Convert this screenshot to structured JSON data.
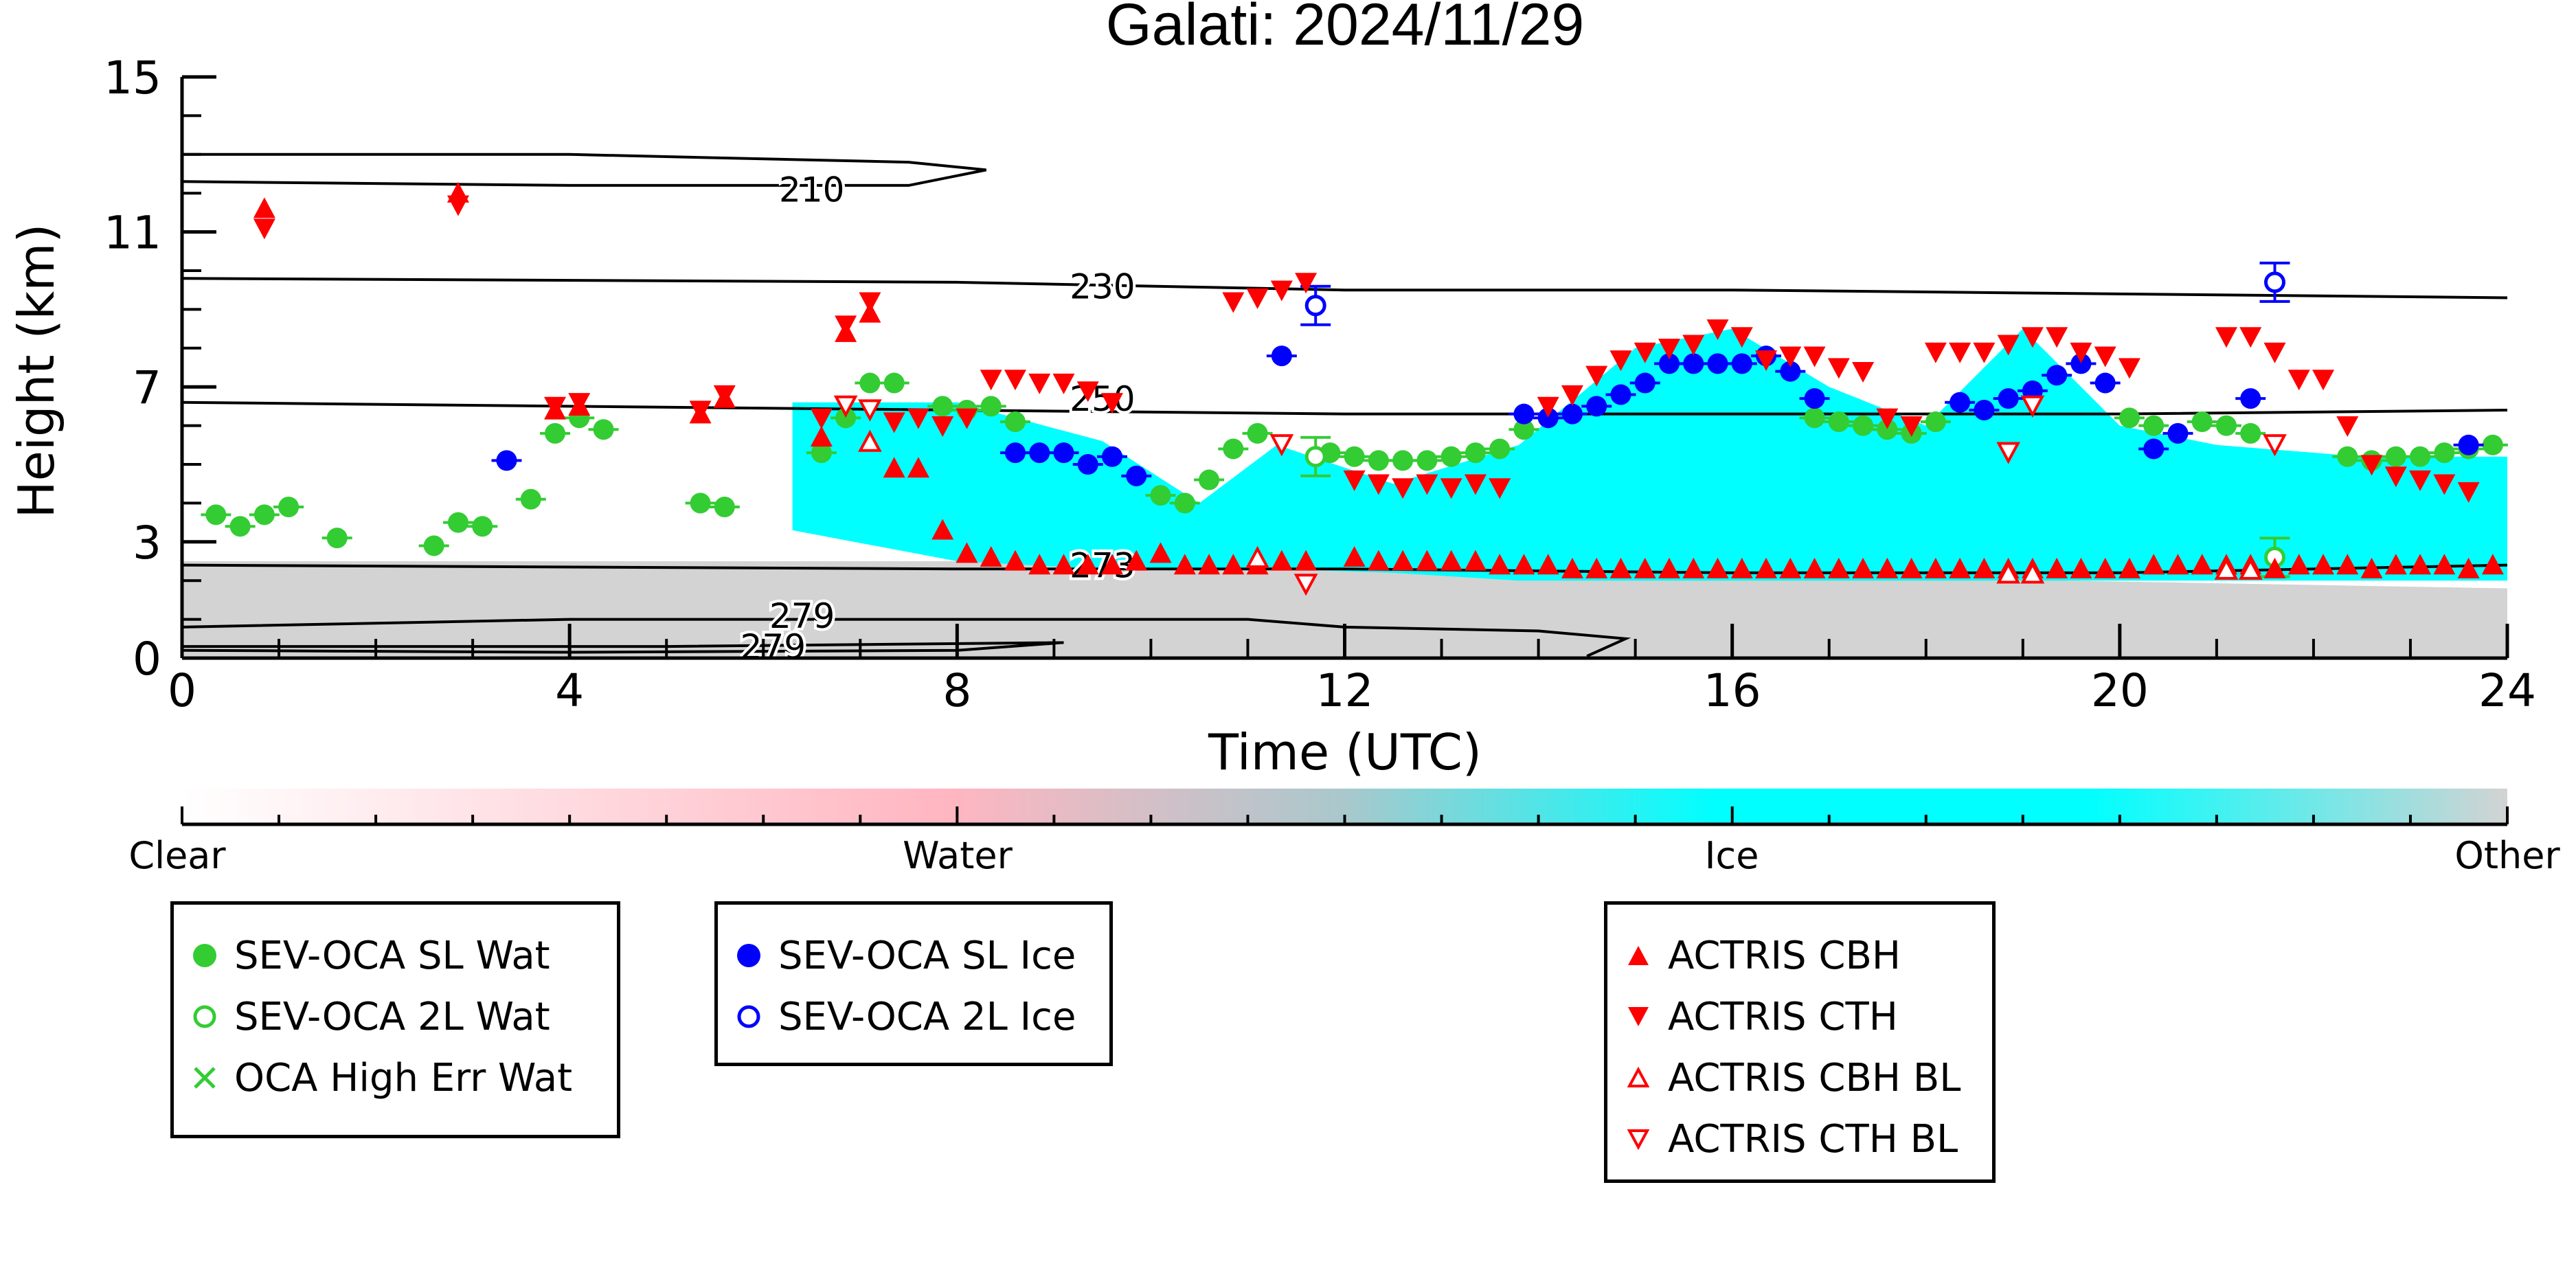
{
  "chart_data": {
    "type": "scatter",
    "title": "Galati: 2024/11/29",
    "xlabel": "Time (UTC)",
    "ylabel": "Height (km)",
    "xlim": [
      0,
      24
    ],
    "ylim": [
      0,
      15
    ],
    "x_ticks": [
      "0",
      "4",
      "8",
      "12",
      "16",
      "20",
      "24"
    ],
    "y_ticks": [
      "0",
      "3",
      "7",
      "11",
      "15"
    ],
    "background_mask": [
      {
        "class": "Ice",
        "color": "#00ffff",
        "x": 6.3,
        "bottom": 3.3,
        "top": 6.6
      },
      {
        "class": "Ice",
        "color": "#00ffff",
        "x": 8.0,
        "bottom": 2.5,
        "top": 6.6
      },
      {
        "class": "Ice",
        "color": "#00ffff",
        "x": 9.5,
        "bottom": 2.3,
        "top": 5.6
      },
      {
        "class": "Ice",
        "color": "#00ffff",
        "x": 10.5,
        "bottom": 2.3,
        "top": 4.0
      },
      {
        "class": "Ice",
        "color": "#00ffff",
        "x": 11.3,
        "bottom": 2.3,
        "top": 5.5
      },
      {
        "class": "Ice",
        "color": "#00ffff",
        "x": 12.5,
        "bottom": 2.2,
        "top": 4.5
      },
      {
        "class": "Ice",
        "color": "#00ffff",
        "x": 13.8,
        "bottom": 2.0,
        "top": 5.5
      },
      {
        "class": "Ice",
        "color": "#00ffff",
        "x": 15.0,
        "bottom": 2.0,
        "top": 8.0
      },
      {
        "class": "Ice",
        "color": "#00ffff",
        "x": 16.0,
        "bottom": 2.0,
        "top": 8.5
      },
      {
        "class": "Ice",
        "color": "#00ffff",
        "x": 17.0,
        "bottom": 2.0,
        "top": 7.0
      },
      {
        "class": "Ice",
        "color": "#00ffff",
        "x": 18.0,
        "bottom": 2.0,
        "top": 6.0
      },
      {
        "class": "Ice",
        "color": "#00ffff",
        "x": 19.0,
        "bottom": 2.0,
        "top": 8.5
      },
      {
        "class": "Ice",
        "color": "#00ffff",
        "x": 20.0,
        "bottom": 2.0,
        "top": 6.0
      },
      {
        "class": "Ice",
        "color": "#00ffff",
        "x": 21.0,
        "bottom": 2.0,
        "top": 5.5
      },
      {
        "class": "Ice",
        "color": "#00ffff",
        "x": 22.5,
        "bottom": 2.0,
        "top": 5.2
      },
      {
        "class": "Ice",
        "color": "#00ffff",
        "x": 24.0,
        "bottom": 2.0,
        "top": 5.2
      },
      {
        "class": "Other",
        "color": "#d3d3d3",
        "x": 0.0,
        "bottom": 0.0,
        "top": 2.5
      },
      {
        "class": "Other",
        "color": "#d3d3d3",
        "x": 3.9,
        "bottom": 0.0,
        "top": 2.5
      },
      {
        "class": "Other",
        "color": "#d3d3d3",
        "x": 5.8,
        "bottom": 0.0,
        "top": 2.5
      },
      {
        "class": "Other",
        "color": "#d3d3d3",
        "x": 8.1,
        "bottom": 0.0,
        "top": 2.5
      },
      {
        "class": "Other",
        "color": "#d3d3d3",
        "x": 24.0,
        "bottom": 0.0,
        "top": 1.8
      }
    ],
    "temperature_contours": [
      {
        "label": "210",
        "label_x": 6.5,
        "label_y": 12.1,
        "points": [
          [
            0,
            13.0
          ],
          [
            4,
            13.0
          ],
          [
            7.5,
            12.8
          ],
          [
            8.3,
            12.6
          ],
          [
            7.5,
            12.2
          ],
          [
            4,
            12.2
          ],
          [
            0,
            12.3
          ]
        ]
      },
      {
        "label": "230",
        "label_x": 9.5,
        "label_y": 9.6,
        "points": [
          [
            0,
            9.8
          ],
          [
            8,
            9.7
          ],
          [
            12,
            9.5
          ],
          [
            16,
            9.5
          ],
          [
            20,
            9.4
          ],
          [
            24,
            9.3
          ]
        ]
      },
      {
        "label": "250",
        "label_x": 9.5,
        "label_y": 6.7,
        "points": [
          [
            0,
            6.6
          ],
          [
            8,
            6.4
          ],
          [
            12,
            6.3
          ],
          [
            16,
            6.3
          ],
          [
            20,
            6.3
          ],
          [
            24,
            6.4
          ]
        ]
      },
      {
        "label": "273",
        "label_x": 9.5,
        "label_y": 2.4,
        "points": [
          [
            0,
            2.4
          ],
          [
            8,
            2.3
          ],
          [
            12,
            2.3
          ],
          [
            16,
            2.2
          ],
          [
            20,
            2.2
          ],
          [
            24,
            2.4
          ]
        ]
      },
      {
        "label": "279",
        "label_x": 6.4,
        "label_y": 1.1,
        "points": [
          [
            0,
            0.8
          ],
          [
            4,
            1.0
          ],
          [
            8,
            1.0
          ],
          [
            11,
            1.0
          ],
          [
            12,
            0.8
          ],
          [
            14,
            0.7
          ],
          [
            14.9,
            0.5
          ],
          [
            14.5,
            0.05
          ]
        ]
      },
      {
        "label": "279",
        "label_x": 6.1,
        "label_y": 0.3,
        "points": [
          [
            0,
            0.3
          ],
          [
            5,
            0.3
          ],
          [
            9.1,
            0.4
          ],
          [
            8,
            0.2
          ],
          [
            4,
            0.15
          ],
          [
            0,
            0.2
          ]
        ]
      }
    ],
    "colorbar": {
      "labels": [
        "Clear",
        "Water",
        "Ice",
        "Other"
      ],
      "colors": [
        "#ffffff",
        "#ffb6c1",
        "#00ffff",
        "#d3d3d3"
      ]
    },
    "series": [
      {
        "name": "SEV-OCA SL Wat",
        "marker": "filled-circle",
        "color": "#33cc33",
        "x": [
          0.35,
          0.6,
          0.85,
          1.1,
          1.6,
          2.6,
          2.85,
          3.1,
          3.6,
          3.85,
          4.1,
          4.35,
          5.35,
          5.6,
          6.6,
          6.85,
          7.1,
          7.35,
          7.85,
          8.1,
          8.35,
          8.6,
          10.1,
          10.35,
          10.6,
          10.85,
          11.1,
          11.85,
          12.1,
          12.35,
          12.6,
          12.85,
          13.1,
          13.35,
          13.6,
          13.85,
          16.85,
          17.1,
          17.35,
          17.6,
          17.85,
          18.1,
          20.1,
          20.35,
          20.85,
          21.1,
          21.35,
          22.35,
          22.6,
          22.85,
          23.1,
          23.35,
          23.6,
          23.85
        ],
        "y": [
          3.7,
          3.4,
          3.7,
          3.9,
          3.1,
          2.9,
          3.5,
          3.4,
          4.1,
          5.8,
          6.2,
          5.9,
          4.0,
          3.9,
          5.3,
          6.2,
          7.1,
          7.1,
          6.5,
          6.4,
          6.5,
          6.1,
          4.2,
          4.0,
          4.6,
          5.4,
          5.8,
          5.3,
          5.2,
          5.1,
          5.1,
          5.1,
          5.2,
          5.3,
          5.4,
          5.9,
          6.2,
          6.1,
          6.0,
          5.9,
          5.8,
          6.1,
          6.2,
          6.0,
          6.1,
          6.0,
          5.8,
          5.2,
          5.1,
          5.2,
          5.2,
          5.3,
          5.4,
          5.5
        ]
      },
      {
        "name": "SEV-OCA 2L Wat",
        "marker": "open-circle",
        "color": "#33cc33",
        "x": [
          11.7,
          21.6
        ],
        "y": [
          5.2,
          2.6
        ]
      },
      {
        "name": "OCA High Err Wat",
        "marker": "x",
        "color": "#33cc33",
        "x": [],
        "y": []
      },
      {
        "name": "SEV-OCA SL Ice",
        "marker": "filled-circle",
        "color": "#0000ff",
        "x": [
          3.35,
          8.6,
          8.85,
          9.1,
          9.35,
          9.6,
          9.85,
          11.35,
          13.85,
          14.1,
          14.35,
          14.6,
          14.85,
          15.1,
          15.35,
          15.6,
          15.85,
          16.1,
          16.35,
          16.6,
          16.85,
          18.35,
          18.6,
          18.85,
          19.1,
          19.35,
          19.6,
          19.85,
          20.35,
          20.6,
          21.35,
          23.6
        ],
        "y": [
          5.1,
          5.3,
          5.3,
          5.3,
          5.0,
          5.2,
          4.7,
          7.8,
          6.3,
          6.2,
          6.3,
          6.5,
          6.8,
          7.1,
          7.6,
          7.6,
          7.6,
          7.6,
          7.8,
          7.4,
          6.7,
          6.6,
          6.4,
          6.7,
          6.9,
          7.3,
          7.6,
          7.1,
          5.4,
          5.8,
          6.7,
          5.5
        ]
      },
      {
        "name": "SEV-OCA 2L Ice",
        "marker": "open-circle",
        "color": "#0000ff",
        "x": [
          11.7,
          21.6
        ],
        "y": [
          9.1,
          9.7
        ]
      },
      {
        "name": "ACTRIS CBH",
        "marker": "filled-triangle-up",
        "color": "#ff0000",
        "x": [
          0.85,
          2.85,
          3.85,
          4.1,
          5.35,
          5.6,
          6.6,
          6.85,
          7.1,
          7.35,
          7.6,
          7.85,
          8.1,
          8.35,
          8.6,
          8.85,
          9.1,
          9.35,
          9.6,
          9.85,
          10.1,
          10.35,
          10.6,
          10.85,
          11.1,
          11.35,
          11.6,
          12.1,
          12.35,
          12.6,
          12.85,
          13.1,
          13.35,
          13.6,
          13.85,
          14.1,
          14.35,
          14.6,
          14.85,
          15.1,
          15.35,
          15.6,
          15.85,
          16.1,
          16.35,
          16.6,
          16.85,
          17.1,
          17.35,
          17.6,
          17.85,
          18.1,
          18.35,
          18.6,
          18.85,
          19.1,
          19.35,
          19.6,
          19.85,
          20.1,
          20.35,
          20.6,
          20.85,
          21.1,
          21.35,
          21.6,
          21.85,
          22.1,
          22.35,
          22.6,
          22.85,
          23.1,
          23.35,
          23.6,
          23.85
        ],
        "y": [
          11.5,
          11.9,
          6.3,
          6.4,
          6.2,
          6.6,
          5.6,
          8.3,
          8.8,
          4.8,
          4.8,
          3.2,
          2.6,
          2.5,
          2.4,
          2.3,
          2.3,
          2.3,
          2.3,
          2.4,
          2.6,
          2.3,
          2.3,
          2.3,
          2.3,
          2.4,
          2.4,
          2.5,
          2.4,
          2.4,
          2.4,
          2.4,
          2.4,
          2.3,
          2.3,
          2.3,
          2.2,
          2.2,
          2.2,
          2.2,
          2.2,
          2.2,
          2.2,
          2.2,
          2.2,
          2.2,
          2.2,
          2.2,
          2.2,
          2.2,
          2.2,
          2.2,
          2.2,
          2.2,
          2.2,
          2.2,
          2.2,
          2.2,
          2.2,
          2.2,
          2.3,
          2.3,
          2.3,
          2.3,
          2.3,
          2.2,
          2.3,
          2.3,
          2.3,
          2.2,
          2.3,
          2.3,
          2.3,
          2.2,
          2.3
        ]
      },
      {
        "name": "ACTRIS CTH",
        "marker": "filled-triangle-down",
        "color": "#ff0000",
        "x": [
          0.85,
          2.85,
          3.85,
          4.1,
          5.35,
          5.6,
          6.6,
          6.85,
          7.1,
          7.35,
          7.6,
          7.85,
          8.1,
          8.35,
          8.6,
          8.85,
          9.1,
          9.35,
          9.6,
          10.85,
          11.1,
          11.35,
          11.6,
          12.1,
          12.35,
          12.6,
          12.85,
          13.1,
          13.35,
          13.6,
          14.1,
          14.35,
          14.6,
          14.85,
          15.1,
          15.35,
          15.6,
          15.85,
          16.1,
          16.35,
          16.6,
          16.85,
          17.1,
          17.35,
          17.6,
          17.85,
          18.1,
          18.35,
          18.6,
          18.85,
          19.1,
          19.35,
          19.6,
          19.85,
          20.1,
          21.1,
          21.35,
          21.6,
          21.85,
          22.1,
          22.35,
          22.6,
          22.85,
          23.1,
          23.35,
          23.6
        ],
        "y": [
          11.2,
          11.8,
          6.6,
          6.7,
          6.5,
          6.9,
          6.3,
          8.7,
          9.3,
          6.2,
          6.3,
          6.1,
          6.3,
          7.3,
          7.3,
          7.2,
          7.2,
          7.0,
          6.7,
          9.3,
          9.4,
          9.6,
          9.8,
          4.7,
          4.6,
          4.5,
          4.6,
          4.5,
          4.6,
          4.5,
          6.6,
          6.9,
          7.4,
          7.8,
          8.0,
          8.1,
          8.2,
          8.6,
          8.4,
          7.8,
          7.9,
          7.9,
          7.6,
          7.5,
          6.3,
          6.1,
          8.0,
          8.0,
          8.0,
          8.2,
          8.4,
          8.4,
          8.0,
          7.9,
          7.6,
          8.4,
          8.4,
          8.0,
          7.3,
          7.3,
          6.1,
          5.1,
          4.8,
          4.7,
          4.6,
          4.4
        ]
      },
      {
        "name": "ACTRIS CBH BL",
        "marker": "open-triangle-up",
        "color": "#ff0000",
        "x": [
          7.1,
          11.1,
          18.85,
          19.1,
          21.1,
          21.35
        ],
        "y": [
          5.5,
          2.5,
          2.1,
          2.1,
          2.2,
          2.2
        ]
      },
      {
        "name": "ACTRIS CTH BL",
        "marker": "open-triangle-down",
        "color": "#ff0000",
        "x": [
          6.85,
          7.1,
          11.35,
          11.6,
          18.85,
          19.1,
          21.6
        ],
        "y": [
          6.6,
          6.5,
          5.6,
          2.0,
          5.4,
          6.6,
          5.6
        ]
      }
    ],
    "legend_groups": [
      [
        "SEV-OCA SL Wat",
        "SEV-OCA 2L Wat",
        "OCA High Err Wat"
      ],
      [
        "SEV-OCA SL Ice",
        "SEV-OCA 2L Ice"
      ],
      [
        "ACTRIS CBH",
        "ACTRIS CTH",
        "ACTRIS CBH BL",
        "ACTRIS CTH BL"
      ]
    ],
    "legend_position": "bottom",
    "grid": false
  }
}
